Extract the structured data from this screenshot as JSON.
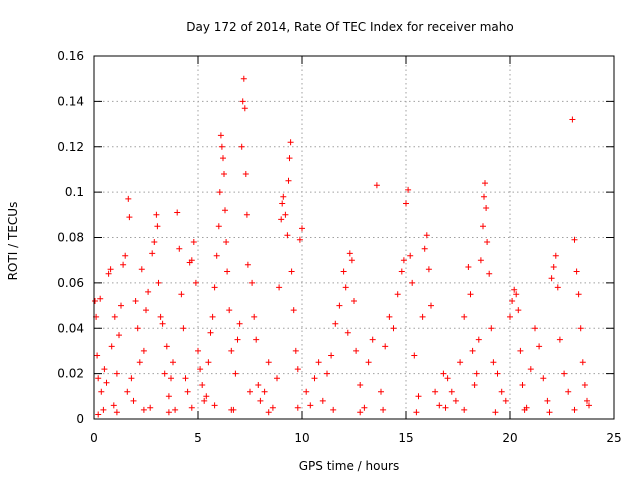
{
  "chart_data": {
    "type": "scatter",
    "title": "Day 172 of 2014, Rate Of TEC Index for receiver maho",
    "xlabel": "GPS time / hours",
    "ylabel": "ROTI / TECUs",
    "xlim": [
      0,
      25
    ],
    "ylim": [
      0,
      0.16
    ],
    "xticks": [
      0,
      5,
      10,
      15,
      20,
      25
    ],
    "yticks": [
      0,
      0.02,
      0.04,
      0.06,
      0.08,
      0.1,
      0.12,
      0.14,
      0.16
    ],
    "xtick_labels": [
      "0",
      "5",
      "10",
      "15",
      "20",
      "25"
    ],
    "ytick_labels": [
      "0",
      "0.02",
      "0.04",
      "0.06",
      "0.08",
      "0.1",
      "0.12",
      "0.14",
      "0.16"
    ],
    "grid": true,
    "marker": "+",
    "color": "#ff0000",
    "series": [
      {
        "name": "ROTI",
        "points": [
          [
            0.05,
            0.052
          ],
          [
            0.1,
            0.045
          ],
          [
            0.15,
            0.028
          ],
          [
            0.2,
            0.018
          ],
          [
            0.3,
            0.053
          ],
          [
            0.35,
            0.012
          ],
          [
            0.45,
            0.004
          ],
          [
            0.5,
            0.022
          ],
          [
            0.6,
            0.016
          ],
          [
            0.7,
            0.064
          ],
          [
            0.8,
            0.066
          ],
          [
            0.85,
            0.032
          ],
          [
            0.95,
            0.006
          ],
          [
            1.0,
            0.045
          ],
          [
            1.1,
            0.02
          ],
          [
            1.2,
            0.037
          ],
          [
            1.3,
            0.05
          ],
          [
            1.4,
            0.068
          ],
          [
            1.5,
            0.072
          ],
          [
            1.6,
            0.012
          ],
          [
            1.65,
            0.097
          ],
          [
            1.7,
            0.089
          ],
          [
            1.8,
            0.018
          ],
          [
            1.9,
            0.008
          ],
          [
            2.0,
            0.052
          ],
          [
            2.1,
            0.04
          ],
          [
            2.2,
            0.025
          ],
          [
            2.3,
            0.066
          ],
          [
            2.4,
            0.03
          ],
          [
            2.5,
            0.048
          ],
          [
            2.6,
            0.056
          ],
          [
            2.7,
            0.005
          ],
          [
            2.8,
            0.073
          ],
          [
            2.9,
            0.078
          ],
          [
            3.0,
            0.09
          ],
          [
            3.05,
            0.085
          ],
          [
            3.1,
            0.06
          ],
          [
            3.2,
            0.045
          ],
          [
            3.3,
            0.042
          ],
          [
            3.4,
            0.02
          ],
          [
            3.5,
            0.032
          ],
          [
            3.6,
            0.01
          ],
          [
            3.7,
            0.018
          ],
          [
            3.8,
            0.025
          ],
          [
            3.9,
            0.004
          ],
          [
            4.0,
            0.091
          ],
          [
            4.1,
            0.075
          ],
          [
            4.2,
            0.055
          ],
          [
            4.3,
            0.04
          ],
          [
            4.4,
            0.018
          ],
          [
            4.5,
            0.012
          ],
          [
            4.6,
            0.069
          ],
          [
            4.7,
            0.07
          ],
          [
            4.8,
            0.078
          ],
          [
            4.9,
            0.06
          ],
          [
            5.0,
            0.03
          ],
          [
            5.1,
            0.022
          ],
          [
            5.2,
            0.015
          ],
          [
            5.3,
            0.008
          ],
          [
            5.4,
            0.01
          ],
          [
            5.5,
            0.025
          ],
          [
            5.6,
            0.038
          ],
          [
            5.7,
            0.045
          ],
          [
            5.8,
            0.058
          ],
          [
            5.9,
            0.072
          ],
          [
            6.0,
            0.085
          ],
          [
            6.05,
            0.1
          ],
          [
            6.1,
            0.125
          ],
          [
            6.15,
            0.12
          ],
          [
            6.2,
            0.115
          ],
          [
            6.25,
            0.108
          ],
          [
            6.3,
            0.092
          ],
          [
            6.35,
            0.078
          ],
          [
            6.4,
            0.065
          ],
          [
            6.5,
            0.048
          ],
          [
            6.6,
            0.03
          ],
          [
            6.7,
            0.004
          ],
          [
            6.8,
            0.02
          ],
          [
            6.9,
            0.035
          ],
          [
            7.0,
            0.042
          ],
          [
            7.1,
            0.12
          ],
          [
            7.15,
            0.14
          ],
          [
            7.2,
            0.15
          ],
          [
            7.25,
            0.137
          ],
          [
            7.3,
            0.108
          ],
          [
            7.35,
            0.09
          ],
          [
            7.4,
            0.068
          ],
          [
            7.5,
            0.012
          ],
          [
            7.6,
            0.06
          ],
          [
            7.7,
            0.045
          ],
          [
            7.8,
            0.035
          ],
          [
            7.9,
            0.015
          ],
          [
            8.0,
            0.008
          ],
          [
            8.2,
            0.012
          ],
          [
            8.4,
            0.025
          ],
          [
            8.6,
            0.005
          ],
          [
            8.8,
            0.018
          ],
          [
            8.9,
            0.058
          ],
          [
            9.0,
            0.088
          ],
          [
            9.05,
            0.095
          ],
          [
            9.1,
            0.098
          ],
          [
            9.2,
            0.09
          ],
          [
            9.3,
            0.081
          ],
          [
            9.35,
            0.105
          ],
          [
            9.4,
            0.115
          ],
          [
            9.45,
            0.122
          ],
          [
            9.5,
            0.065
          ],
          [
            9.6,
            0.048
          ],
          [
            9.7,
            0.03
          ],
          [
            9.8,
            0.022
          ],
          [
            9.9,
            0.079
          ],
          [
            10.0,
            0.084
          ],
          [
            10.2,
            0.012
          ],
          [
            10.4,
            0.006
          ],
          [
            10.6,
            0.018
          ],
          [
            10.8,
            0.025
          ],
          [
            11.0,
            0.008
          ],
          [
            11.2,
            0.02
          ],
          [
            11.4,
            0.028
          ],
          [
            11.6,
            0.042
          ],
          [
            11.8,
            0.05
          ],
          [
            12.0,
            0.065
          ],
          [
            12.1,
            0.058
          ],
          [
            12.2,
            0.038
          ],
          [
            12.3,
            0.073
          ],
          [
            12.4,
            0.07
          ],
          [
            12.5,
            0.052
          ],
          [
            12.6,
            0.03
          ],
          [
            12.8,
            0.015
          ],
          [
            13.0,
            0.005
          ],
          [
            13.2,
            0.025
          ],
          [
            13.4,
            0.035
          ],
          [
            13.6,
            0.103
          ],
          [
            13.8,
            0.012
          ],
          [
            14.0,
            0.032
          ],
          [
            14.2,
            0.045
          ],
          [
            14.4,
            0.04
          ],
          [
            14.6,
            0.055
          ],
          [
            14.8,
            0.065
          ],
          [
            14.9,
            0.07
          ],
          [
            15.0,
            0.095
          ],
          [
            15.1,
            0.101
          ],
          [
            15.2,
            0.072
          ],
          [
            15.3,
            0.06
          ],
          [
            15.4,
            0.028
          ],
          [
            15.6,
            0.01
          ],
          [
            15.8,
            0.045
          ],
          [
            15.9,
            0.075
          ],
          [
            16.0,
            0.081
          ],
          [
            16.1,
            0.066
          ],
          [
            16.2,
            0.05
          ],
          [
            16.4,
            0.012
          ],
          [
            16.6,
            0.006
          ],
          [
            16.8,
            0.02
          ],
          [
            17.0,
            0.018
          ],
          [
            17.2,
            0.012
          ],
          [
            17.4,
            0.008
          ],
          [
            17.6,
            0.025
          ],
          [
            17.8,
            0.045
          ],
          [
            18.0,
            0.067
          ],
          [
            18.1,
            0.055
          ],
          [
            18.2,
            0.03
          ],
          [
            18.3,
            0.015
          ],
          [
            18.4,
            0.02
          ],
          [
            18.5,
            0.035
          ],
          [
            18.6,
            0.07
          ],
          [
            18.7,
            0.085
          ],
          [
            18.75,
            0.098
          ],
          [
            18.8,
            0.104
          ],
          [
            18.85,
            0.093
          ],
          [
            18.9,
            0.078
          ],
          [
            19.0,
            0.064
          ],
          [
            19.1,
            0.04
          ],
          [
            19.2,
            0.025
          ],
          [
            19.4,
            0.02
          ],
          [
            19.6,
            0.012
          ],
          [
            19.8,
            0.008
          ],
          [
            20.0,
            0.045
          ],
          [
            20.1,
            0.052
          ],
          [
            20.2,
            0.057
          ],
          [
            20.3,
            0.055
          ],
          [
            20.4,
            0.048
          ],
          [
            20.5,
            0.03
          ],
          [
            20.6,
            0.015
          ],
          [
            20.8,
            0.005
          ],
          [
            21.0,
            0.022
          ],
          [
            21.2,
            0.04
          ],
          [
            21.4,
            0.032
          ],
          [
            21.6,
            0.018
          ],
          [
            21.8,
            0.008
          ],
          [
            22.0,
            0.062
          ],
          [
            22.1,
            0.067
          ],
          [
            22.2,
            0.072
          ],
          [
            22.3,
            0.058
          ],
          [
            22.4,
            0.035
          ],
          [
            22.6,
            0.02
          ],
          [
            22.8,
            0.012
          ],
          [
            23.0,
            0.132
          ],
          [
            23.1,
            0.079
          ],
          [
            23.2,
            0.065
          ],
          [
            23.3,
            0.055
          ],
          [
            23.4,
            0.04
          ],
          [
            23.5,
            0.025
          ],
          [
            23.6,
            0.015
          ],
          [
            23.7,
            0.008
          ],
          [
            0.2,
            0.002
          ],
          [
            1.1,
            0.003
          ],
          [
            2.4,
            0.004
          ],
          [
            3.6,
            0.003
          ],
          [
            4.7,
            0.005
          ],
          [
            5.8,
            0.006
          ],
          [
            6.6,
            0.004
          ],
          [
            8.4,
            0.003
          ],
          [
            9.8,
            0.005
          ],
          [
            11.5,
            0.004
          ],
          [
            12.8,
            0.003
          ],
          [
            13.9,
            0.004
          ],
          [
            15.5,
            0.003
          ],
          [
            16.9,
            0.005
          ],
          [
            17.8,
            0.004
          ],
          [
            19.3,
            0.003
          ],
          [
            20.7,
            0.004
          ],
          [
            21.9,
            0.003
          ],
          [
            23.1,
            0.004
          ],
          [
            23.8,
            0.006
          ]
        ]
      }
    ]
  }
}
